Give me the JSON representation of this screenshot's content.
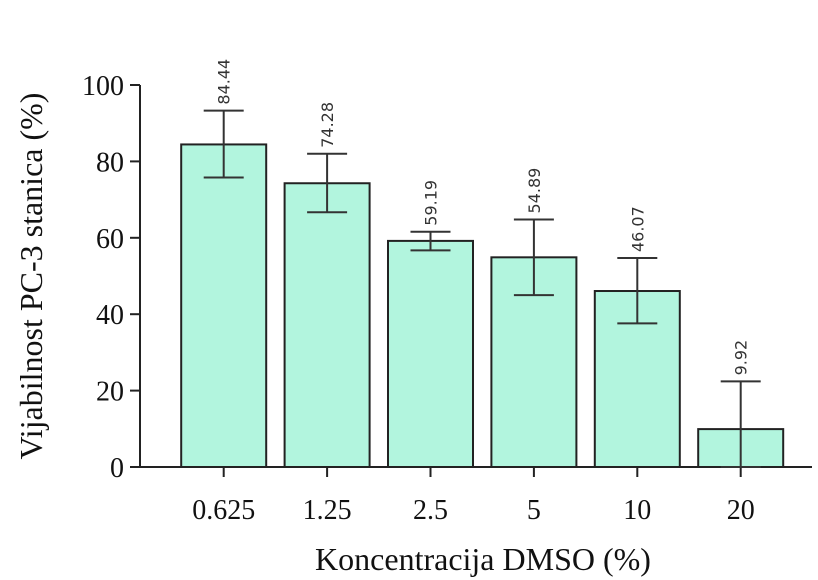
{
  "chart_data": {
    "type": "bar",
    "xlabel": "Koncentracija DMSO (%)",
    "ylabel": "Vijabilnost PC-3 stanica (%)",
    "categories": [
      "0.625",
      "1.25",
      "2.5",
      "5",
      "10",
      "20"
    ],
    "values": [
      84.44,
      74.28,
      59.19,
      54.89,
      46.07,
      9.92
    ],
    "value_labels": [
      "84.44",
      "74.28",
      "59.19",
      "54.89",
      "46.07",
      "9.92"
    ],
    "error_low": [
      75.8,
      66.7,
      56.7,
      45.0,
      37.6,
      0.0
    ],
    "error_high": [
      93.3,
      82.0,
      61.6,
      64.8,
      54.7,
      22.4
    ],
    "ylim": [
      0,
      100
    ],
    "yticks": [
      0,
      20,
      40,
      60,
      80,
      100
    ],
    "ytick_labels": [
      "0",
      "20",
      "40",
      "60",
      "80",
      "100"
    ],
    "grid": false,
    "bar_color": "#b2f5de"
  }
}
